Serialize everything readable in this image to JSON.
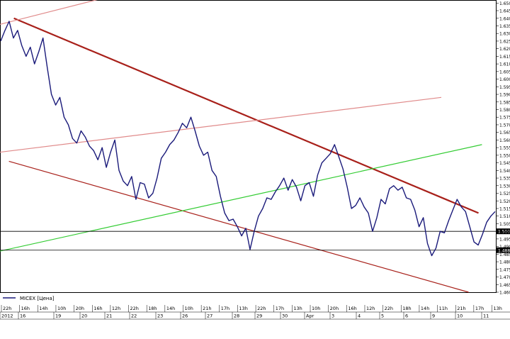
{
  "chart_data": {
    "type": "line",
    "title": "",
    "ylim": [
      1.46,
      1.652
    ],
    "y_tick_labels": [
      "1.650",
      "1.645",
      "1.640",
      "1.635",
      "1.630",
      "1.625",
      "1.620",
      "1.615",
      "1.610",
      "1.605",
      "1.600",
      "1.595",
      "1.590",
      "1.585",
      "1.580",
      "1.575",
      "1.570",
      "1.565",
      "1.560",
      "1.555",
      "1.550",
      "1.545",
      "1.540",
      "1.535",
      "1.530",
      "1.525",
      "1.520",
      "1.515",
      "1.510",
      "1.505",
      "1.500",
      "1.495",
      "1.490",
      "1.485",
      "1.480",
      "1.475",
      "1.470",
      "1.465",
      "1.460"
    ],
    "x_time_labels": [
      "22h",
      "16h",
      "14h",
      "10h",
      "20h",
      "16h",
      "12h",
      "22h",
      "18h",
      "14h",
      "10h",
      "21h",
      "17h",
      "13h",
      "22h",
      "17h",
      "13h",
      "10h",
      "20h",
      "16h",
      "12h",
      "22h",
      "18h",
      "14h",
      "11h",
      "21h",
      "17h",
      "13h"
    ],
    "x_date_labels": [
      "2012",
      "16",
      "19",
      "20",
      "21",
      "22",
      "23",
      "26",
      "27",
      "28",
      "29",
      "30",
      "Apr",
      "3",
      "4",
      "5",
      "6",
      "9",
      "10",
      "11"
    ],
    "series": [
      {
        "name": "MICEX [Цена]",
        "color": "#1a1a7a",
        "values": [
          1.625,
          1.632,
          1.638,
          1.627,
          1.632,
          1.622,
          1.615,
          1.621,
          1.61,
          1.618,
          1.627,
          1.608,
          1.59,
          1.583,
          1.588,
          1.575,
          1.57,
          1.561,
          1.558,
          1.566,
          1.562,
          1.556,
          1.553,
          1.547,
          1.555,
          1.542,
          1.552,
          1.56,
          1.54,
          1.533,
          1.53,
          1.536,
          1.521,
          1.532,
          1.531,
          1.522,
          1.525,
          1.535,
          1.548,
          1.552,
          1.557,
          1.56,
          1.565,
          1.571,
          1.568,
          1.575,
          1.566,
          1.556,
          1.55,
          1.552,
          1.54,
          1.536,
          1.523,
          1.512,
          1.507,
          1.508,
          1.503,
          1.497,
          1.502,
          1.488,
          1.5,
          1.51,
          1.515,
          1.522,
          1.521,
          1.526,
          1.53,
          1.535,
          1.527,
          1.534,
          1.529,
          1.52,
          1.53,
          1.532,
          1.523,
          1.537,
          1.545,
          1.548,
          1.551,
          1.557,
          1.549,
          1.541,
          1.529,
          1.515,
          1.517,
          1.522,
          1.516,
          1.512,
          1.5,
          1.509,
          1.521,
          1.518,
          1.528,
          1.53,
          1.527,
          1.529,
          1.522,
          1.521,
          1.514,
          1.503,
          1.509,
          1.492,
          1.484,
          1.489,
          1.5,
          1.499,
          1.507,
          1.514,
          1.521,
          1.516,
          1.513,
          1.503,
          1.493,
          1.491,
          1.498,
          1.506,
          1.51,
          1.513
        ]
      }
    ],
    "trend_lines": [
      {
        "color": "#a8201a",
        "from": [
          0.028,
          1.64
        ],
        "to": [
          0.965,
          1.512
        ]
      },
      {
        "color": "#a8201a",
        "from": [
          0.018,
          1.546
        ],
        "to": [
          0.945,
          1.46
        ]
      },
      {
        "color": "#e08a8a",
        "from": [
          0.0,
          1.552
        ],
        "to": [
          0.89,
          1.588
        ]
      },
      {
        "color": "#e08a8a",
        "from": [
          0.0,
          1.636
        ],
        "to": [
          0.29,
          1.66
        ]
      },
      {
        "color": "#33cc33",
        "from": [
          0.0,
          1.487
        ],
        "to": [
          0.972,
          1.557
        ]
      }
    ],
    "horizontal_lines": [
      {
        "value": 1.5,
        "label": "1.500"
      },
      {
        "value": 1.4876,
        "label": "1.488"
      }
    ],
    "legend_position": "bottom-left",
    "grid": true
  }
}
